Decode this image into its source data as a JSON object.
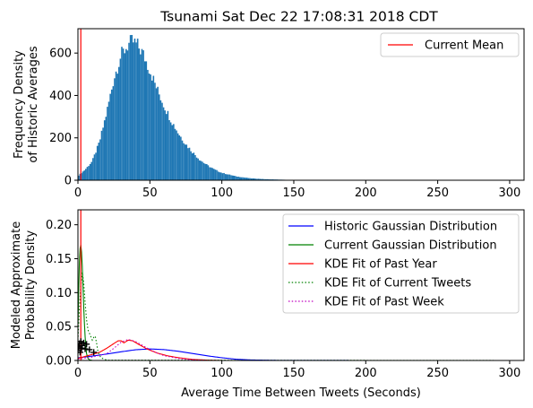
{
  "title": "Tsunami Sat Dec 22 17:08:31 2018 CDT",
  "chart_data": [
    {
      "type": "bar",
      "subtype": "histogram",
      "ylabel_lines": [
        "Frequency Density",
        "of Historic Averages"
      ],
      "xlabel": "",
      "xlim": [
        0,
        310
      ],
      "ylim": [
        0,
        715
      ],
      "xticks": [
        "0",
        "50",
        "100",
        "150",
        "200",
        "250",
        "300"
      ],
      "xtick_values": [
        0,
        50,
        100,
        150,
        200,
        250,
        300
      ],
      "yticks": [
        "0",
        "200",
        "400",
        "600"
      ],
      "ytick_values": [
        0,
        200,
        400,
        600
      ],
      "bar_color": "#1f77b4",
      "histogram": {
        "x": [
          0,
          5,
          10,
          15,
          20,
          25,
          30,
          35,
          38,
          41,
          45,
          50,
          55,
          60,
          65,
          70,
          75,
          80,
          85,
          90,
          95,
          100,
          110,
          120,
          130,
          140,
          150,
          160
        ],
        "y": [
          20,
          50,
          90,
          180,
          320,
          480,
          590,
          640,
          655,
          640,
          600,
          520,
          430,
          350,
          280,
          220,
          170,
          130,
          95,
          70,
          50,
          35,
          18,
          9,
          5,
          3,
          1,
          0
        ]
      },
      "current_mean": 2,
      "legend": {
        "position": "upper right",
        "entries": [
          {
            "label": "Current Mean",
            "color": "#ff0000",
            "style": "solid"
          }
        ]
      }
    },
    {
      "type": "line",
      "ylabel_lines": [
        "Modeled Approximate",
        "Probability Density"
      ],
      "xlabel": "Average Time Between Tweets (Seconds)",
      "xlim": [
        0,
        310
      ],
      "ylim": [
        0,
        0.222
      ],
      "xticks": [
        "0",
        "50",
        "100",
        "150",
        "200",
        "250",
        "300"
      ],
      "xtick_values": [
        0,
        50,
        100,
        150,
        200,
        250,
        300
      ],
      "yticks": [
        "0.00",
        "0.05",
        "0.10",
        "0.15",
        "0.20"
      ],
      "ytick_values": [
        0,
        0.05,
        0.1,
        0.15,
        0.2
      ],
      "current_mean": 2,
      "series": [
        {
          "name": "Historic Gaussian Distribution",
          "color": "#0000ff",
          "style": "solid",
          "x": [
            0,
            10,
            20,
            30,
            40,
            50,
            60,
            70,
            80,
            90,
            100,
            110,
            120,
            140,
            200,
            300
          ],
          "y": [
            0.004,
            0.0065,
            0.0095,
            0.0128,
            0.0158,
            0.017,
            0.016,
            0.0135,
            0.0102,
            0.0068,
            0.004,
            0.0018,
            0.0008,
            0.0001,
            0,
            0
          ]
        },
        {
          "name": "Current Gaussian Distribution",
          "color": "#008000",
          "style": "solid",
          "x": [
            0,
            0.5,
            1,
            1.5,
            2,
            2.5,
            3,
            3.5,
            4,
            4.5,
            5,
            5.5,
            6,
            7,
            8,
            10,
            300
          ],
          "y": [
            0.05,
            0.1,
            0.145,
            0.165,
            0.17,
            0.16,
            0.14,
            0.11,
            0.08,
            0.055,
            0.035,
            0.02,
            0.01,
            0.003,
            0.001,
            0,
            0
          ]
        },
        {
          "name": "KDE Fit of Past Year",
          "color": "#ff0000",
          "style": "solid",
          "x": [
            0,
            5,
            10,
            15,
            20,
            25,
            28,
            30,
            32,
            35,
            38,
            42,
            48,
            55,
            62,
            70,
            80,
            90,
            100,
            300
          ],
          "y": [
            0.003,
            0.006,
            0.009,
            0.012,
            0.018,
            0.025,
            0.029,
            0.029,
            0.026,
            0.03,
            0.029,
            0.024,
            0.017,
            0.011,
            0.007,
            0.004,
            0.0015,
            0.0005,
            0,
            0
          ]
        },
        {
          "name": "KDE Fit of Current Tweets",
          "color": "#008000",
          "style": "dotted",
          "x": [
            0,
            1,
            2,
            3,
            4,
            5,
            6,
            7,
            8,
            9,
            10,
            11,
            12,
            13,
            14,
            16,
            20,
            300
          ],
          "y": [
            0.03,
            0.075,
            0.11,
            0.13,
            0.115,
            0.085,
            0.06,
            0.045,
            0.04,
            0.035,
            0.03,
            0.034,
            0.036,
            0.025,
            0.012,
            0.004,
            0.0005,
            0
          ]
        },
        {
          "name": "KDE Fit of Past Week",
          "color": "#bf00bf",
          "style": "dotted",
          "x": [
            0,
            10,
            20,
            25,
            30,
            35,
            40,
            45,
            50,
            55,
            60,
            70,
            80,
            90,
            300
          ],
          "y": [
            0.002,
            0.005,
            0.01,
            0.018,
            0.027,
            0.031,
            0.028,
            0.022,
            0.016,
            0.011,
            0.007,
            0.003,
            0.001,
            0,
            0
          ]
        }
      ],
      "current_points": [
        {
          "x": 0,
          "y": 0.015
        },
        {
          "x": 0.5,
          "y": 0.02
        },
        {
          "x": 1,
          "y": 0.025
        },
        {
          "x": 1.5,
          "y": 0.012
        },
        {
          "x": 2,
          "y": 0.028
        },
        {
          "x": 2.5,
          "y": 0.018
        },
        {
          "x": 3,
          "y": 0.022
        },
        {
          "x": 4,
          "y": 0.026
        },
        {
          "x": 5,
          "y": 0.017
        },
        {
          "x": 6,
          "y": 0.024
        },
        {
          "x": 8,
          "y": 0.016
        },
        {
          "x": 11,
          "y": 0.012
        }
      ],
      "legend": {
        "position": "upper right"
      }
    }
  ]
}
